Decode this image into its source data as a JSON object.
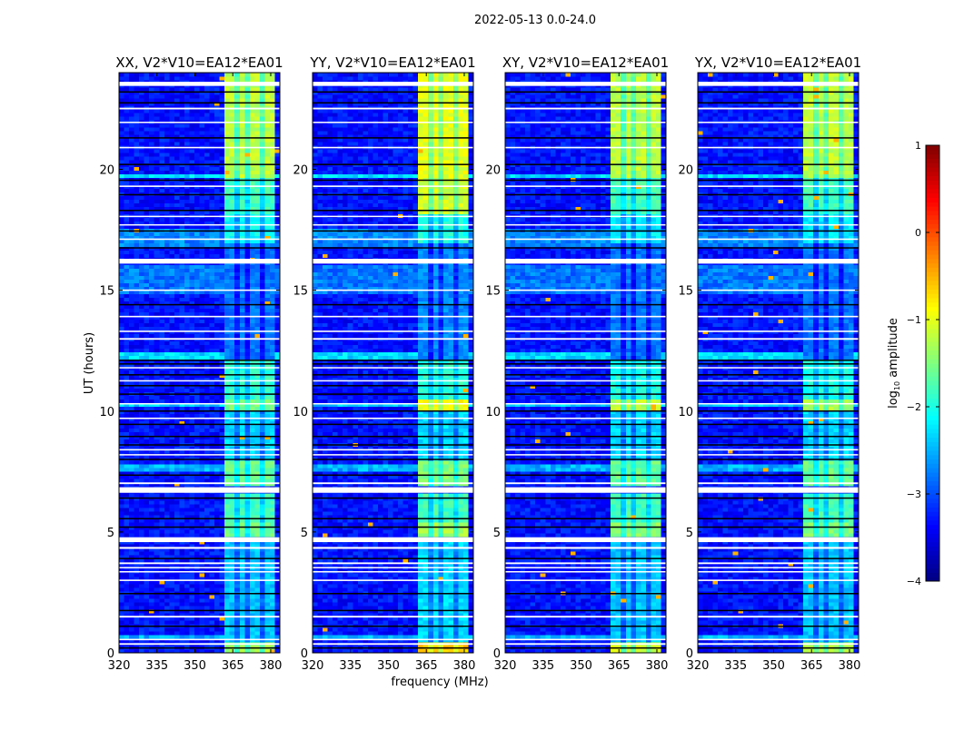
{
  "chart_data": {
    "type": "heatmap",
    "title": "2022-05-13 0.0-24.0",
    "xlabel": "frequency (MHz)",
    "ylabel": "UT (hours)",
    "xlim": [
      320,
      383.6
    ],
    "ylim": [
      0,
      24
    ],
    "xticks": [
      "320",
      "335",
      "350",
      "365",
      "380"
    ],
    "xtick_values": [
      320,
      335,
      350,
      365,
      380
    ],
    "yticks": [
      "0",
      "5",
      "10",
      "15",
      "20"
    ],
    "ytick_values": [
      0,
      5,
      10,
      15,
      20
    ],
    "colorbar": {
      "label_main": "log",
      "label_sub": "10",
      "label_rest": " amplitude",
      "range": [
        -4,
        1
      ],
      "ticks": [
        "−4",
        "−3",
        "−2",
        "−1",
        "0",
        "1"
      ],
      "tick_values": [
        -4,
        -3,
        -2,
        -1,
        0,
        1
      ],
      "colormap": "jet"
    },
    "background_log_amp": -3.3,
    "background_bands": [
      {
        "t": [
          0.55,
          0.7
        ],
        "v": -2.5
      },
      {
        "t": [
          7.55,
          7.85
        ],
        "v": -2.5
      },
      {
        "t": [
          10.25,
          10.4
        ],
        "v": -2.4
      },
      {
        "t": [
          12.15,
          12.5
        ],
        "v": -2.3
      },
      {
        "t": [
          14.9,
          16.0
        ],
        "v": -2.8
      },
      {
        "t": [
          16.8,
          17.6
        ],
        "v": -2.7
      },
      {
        "t": [
          19.65,
          19.85
        ],
        "v": -2.3
      }
    ],
    "rfi_band_mhz": [
      362,
      381
    ],
    "band_gaps_mhz": [
      366.3,
      371.3,
      376.3
    ],
    "flagged_hours": [
      [
        0.33,
        0.4
      ],
      [
        0.52,
        0.58
      ],
      [
        1.46,
        1.53
      ],
      [
        2.97,
        3.03
      ],
      [
        3.33,
        3.38
      ],
      [
        3.5,
        3.55
      ],
      [
        3.67,
        3.74
      ],
      [
        4.3,
        4.38
      ],
      [
        4.58,
        4.78
      ],
      [
        6.62,
        6.85
      ],
      [
        6.98,
        7.05
      ],
      [
        8.17,
        8.22
      ],
      [
        8.37,
        8.43
      ],
      [
        9.67,
        9.73
      ],
      [
        10.28,
        10.33
      ],
      [
        11.23,
        11.28
      ],
      [
        11.78,
        11.82
      ],
      [
        12.95,
        13.02
      ],
      [
        13.27,
        13.33
      ],
      [
        13.88,
        13.94
      ],
      [
        14.97,
        15.03
      ],
      [
        16.1,
        16.3
      ],
      [
        17.08,
        17.14
      ],
      [
        17.68,
        17.73
      ],
      [
        18.03,
        18.08
      ],
      [
        19.27,
        19.33
      ],
      [
        20.87,
        20.93
      ],
      [
        21.92,
        21.97
      ],
      [
        22.48,
        22.55
      ],
      [
        23.45,
        23.62
      ]
    ],
    "dark_hours": [
      0.2,
      1.1,
      1.75,
      2.45,
      3.9,
      5.2,
      5.55,
      6.4,
      7.35,
      8.0,
      8.6,
      8.95,
      9.45,
      10.0,
      10.7,
      11.05,
      11.5,
      11.95,
      12.1,
      14.4,
      16.75,
      17.45,
      18.3,
      18.95,
      19.55,
      20.2,
      21.3,
      22.75,
      23.2
    ],
    "panels": [
      {
        "title": "XX, V2*V10=EA12*EA01",
        "band_segments": [
          {
            "t": [
              0,
              0.5
            ],
            "v": -1.3
          },
          {
            "t": [
              0.5,
              4.6
            ],
            "v": -2.4
          },
          {
            "t": [
              4.8,
              5.4
            ],
            "v": -1.6
          },
          {
            "t": [
              5.4,
              6.6
            ],
            "v": -1.8
          },
          {
            "t": [
              6.9,
              8.0
            ],
            "v": -1.6
          },
          {
            "t": [
              8.0,
              10.1
            ],
            "v": -2.3
          },
          {
            "t": [
              10.1,
              10.5
            ],
            "v": -1.5
          },
          {
            "t": [
              10.5,
              12.1
            ],
            "v": -1.9
          },
          {
            "t": [
              12.1,
              17.0
            ],
            "v": -2.8
          },
          {
            "t": [
              17.0,
              18.2
            ],
            "v": -2.1
          },
          {
            "t": [
              18.2,
              19.6
            ],
            "v": -1.8
          },
          {
            "t": [
              19.6,
              24
            ],
            "v": -1.2
          }
        ]
      },
      {
        "title": "YY, V2*V10=EA12*EA01",
        "band_segments": [
          {
            "t": [
              0,
              0.5
            ],
            "v": -0.6
          },
          {
            "t": [
              0.5,
              4.6
            ],
            "v": -2.3
          },
          {
            "t": [
              4.8,
              5.4
            ],
            "v": -1.3
          },
          {
            "t": [
              5.4,
              6.6
            ],
            "v": -1.8
          },
          {
            "t": [
              6.9,
              8.0
            ],
            "v": -1.5
          },
          {
            "t": [
              8.0,
              10.1
            ],
            "v": -2.3
          },
          {
            "t": [
              10.1,
              10.5
            ],
            "v": -0.9
          },
          {
            "t": [
              10.5,
              12.1
            ],
            "v": -1.9
          },
          {
            "t": [
              12.1,
              17.0
            ],
            "v": -2.7
          },
          {
            "t": [
              17.0,
              18.2
            ],
            "v": -2.0
          },
          {
            "t": [
              18.2,
              19.6
            ],
            "v": -1.1
          },
          {
            "t": [
              19.6,
              24
            ],
            "v": -1.0
          }
        ]
      },
      {
        "title": "XY, V2*V10=EA12*EA01",
        "band_segments": [
          {
            "t": [
              0,
              0.5
            ],
            "v": -1.1
          },
          {
            "t": [
              0.5,
              4.6
            ],
            "v": -2.4
          },
          {
            "t": [
              4.8,
              5.4
            ],
            "v": -1.4
          },
          {
            "t": [
              5.4,
              6.6
            ],
            "v": -1.8
          },
          {
            "t": [
              6.9,
              8.0
            ],
            "v": -1.6
          },
          {
            "t": [
              8.0,
              10.1
            ],
            "v": -2.3
          },
          {
            "t": [
              10.1,
              10.5
            ],
            "v": -1.2
          },
          {
            "t": [
              10.5,
              12.1
            ],
            "v": -2.0
          },
          {
            "t": [
              12.1,
              17.0
            ],
            "v": -2.8
          },
          {
            "t": [
              17.0,
              18.2
            ],
            "v": -2.2
          },
          {
            "t": [
              18.2,
              19.6
            ],
            "v": -1.8
          },
          {
            "t": [
              19.6,
              24
            ],
            "v": -1.2
          }
        ]
      },
      {
        "title": "YX, V2*V10=EA12*EA01",
        "band_segments": [
          {
            "t": [
              0,
              0.5
            ],
            "v": -1.2
          },
          {
            "t": [
              0.5,
              4.6
            ],
            "v": -2.4
          },
          {
            "t": [
              4.8,
              5.4
            ],
            "v": -1.5
          },
          {
            "t": [
              5.4,
              6.6
            ],
            "v": -1.8
          },
          {
            "t": [
              6.9,
              8.0
            ],
            "v": -1.6
          },
          {
            "t": [
              8.0,
              10.1
            ],
            "v": -2.3
          },
          {
            "t": [
              10.1,
              10.5
            ],
            "v": -1.3
          },
          {
            "t": [
              10.5,
              12.1
            ],
            "v": -2.0
          },
          {
            "t": [
              12.1,
              17.0
            ],
            "v": -2.8
          },
          {
            "t": [
              17.0,
              18.2
            ],
            "v": -2.2
          },
          {
            "t": [
              18.2,
              19.6
            ],
            "v": -1.8
          },
          {
            "t": [
              19.6,
              24
            ],
            "v": -1.2
          }
        ]
      }
    ]
  }
}
